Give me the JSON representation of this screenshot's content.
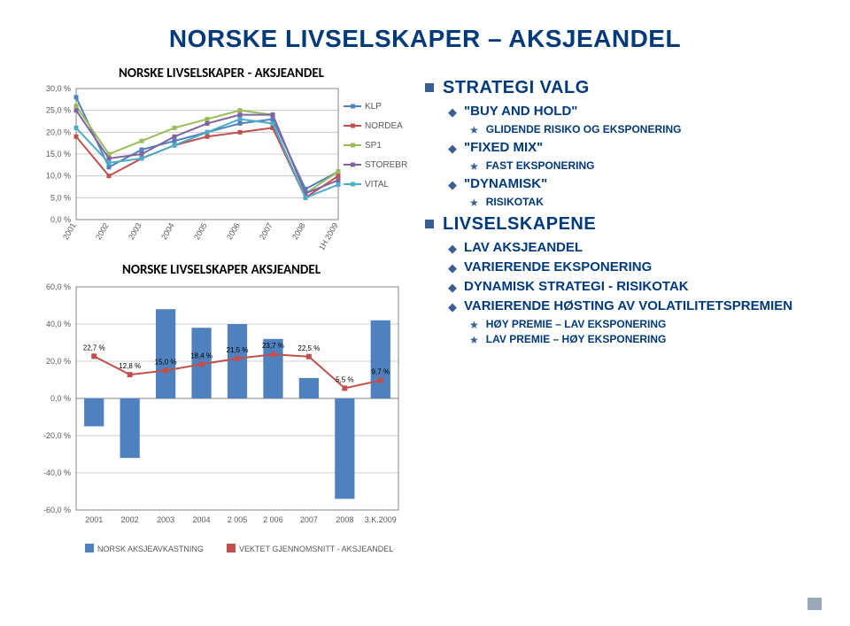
{
  "title": "NORSKE LIVSELSKAPER – AKSJEANDEL",
  "line_chart": {
    "title": "NORSKE LIVSELSKAPER - AKSJEANDEL",
    "type": "line",
    "x_categories": [
      "2001",
      "2002",
      "2003",
      "2004",
      "2005",
      "2006",
      "2007",
      "2008",
      "1H.2009"
    ],
    "ylim": [
      0,
      30
    ],
    "ytick_step": 5,
    "y_suffix": " %",
    "series": [
      {
        "name": "KLP",
        "color": "#4e81bd",
        "values": [
          28,
          12,
          16,
          18,
          20,
          22,
          23,
          7,
          11
        ]
      },
      {
        "name": "NORDEA",
        "color": "#c0504d",
        "values": [
          19,
          10,
          14,
          17,
          19,
          20,
          21,
          5,
          10
        ]
      },
      {
        "name": "SP1",
        "color": "#9bbb59",
        "values": [
          26,
          15,
          18,
          21,
          23,
          25,
          24,
          6,
          11
        ]
      },
      {
        "name": "STOREBR",
        "color": "#8064a2",
        "values": [
          25,
          14,
          15,
          19,
          22,
          24,
          24,
          6,
          9
        ]
      },
      {
        "name": "VITAL",
        "color": "#4bacc6",
        "values": [
          21,
          13,
          14,
          17,
          20,
          23,
          22,
          5,
          8
        ]
      }
    ],
    "font_size_axis": 9,
    "font_size_legend": 10,
    "grid_color": "#bfbfbf",
    "background_color": "#ffffff"
  },
  "combo_chart": {
    "title": "NORSKE LIVSELSKAPER  AKSJEANDEL",
    "type": "bar+line",
    "x_categories": [
      "2001",
      "2002",
      "2003",
      "2004",
      "2 005",
      "2 006",
      "2007",
      "2008",
      "3.K.2009"
    ],
    "ylim": [
      -60,
      60
    ],
    "ytick_step": 20,
    "y_suffix": " %",
    "bar_series": {
      "name": "NORSK AKSJEAVKASTNING",
      "color": "#4e81bd",
      "values": [
        -15,
        -32,
        48,
        38,
        40,
        32,
        11,
        -54,
        42
      ]
    },
    "line_series": {
      "name": "VEKTET GJENNOMSNITT  - AKSJEANDEL",
      "color": "#c0504d",
      "values": [
        22.7,
        12.8,
        15.0,
        18.4,
        21.5,
        23.7,
        22.5,
        5.5,
        9.7
      ],
      "labels": [
        "22,7 %",
        "12,8 %",
        "15,0 %",
        "18,4 %",
        "21,5 %",
        "23,7 %",
        "22,5 %",
        "5,5 %",
        "9,7 %"
      ]
    },
    "font_size_axis": 9,
    "font_size_legend": 9,
    "font_size_data_label": 8,
    "grid_color": "#bfbfbf",
    "background_color": "#ffffff"
  },
  "bullets": {
    "g1": {
      "title": "STRATEGI VALG",
      "items": [
        {
          "label": "\"BUY AND HOLD\"",
          "sub": [
            "GLIDENDE RISIKO OG EKSPONERING"
          ]
        },
        {
          "label": "\"FIXED MIX\"",
          "sub": [
            "FAST EKSPONERING"
          ]
        },
        {
          "label": "\"DYNAMISK\"",
          "sub": [
            "RISIKOTAK"
          ]
        }
      ]
    },
    "g2": {
      "title": "LIVSELSKAPENE",
      "items": [
        {
          "label": "LAV AKSJEANDEL"
        },
        {
          "label": "VARIERENDE EKSPONERING"
        },
        {
          "label": "DYNAMISK  STRATEGI - RISIKOTAK"
        },
        {
          "label": "VARIERENDE HØSTING AV VOLATILITETSPREMIEN",
          "sub": [
            "HØY PREMIE – LAV EKSPONERING",
            "LAV PREMIE – HØY EKSPONERING"
          ]
        }
      ]
    }
  }
}
